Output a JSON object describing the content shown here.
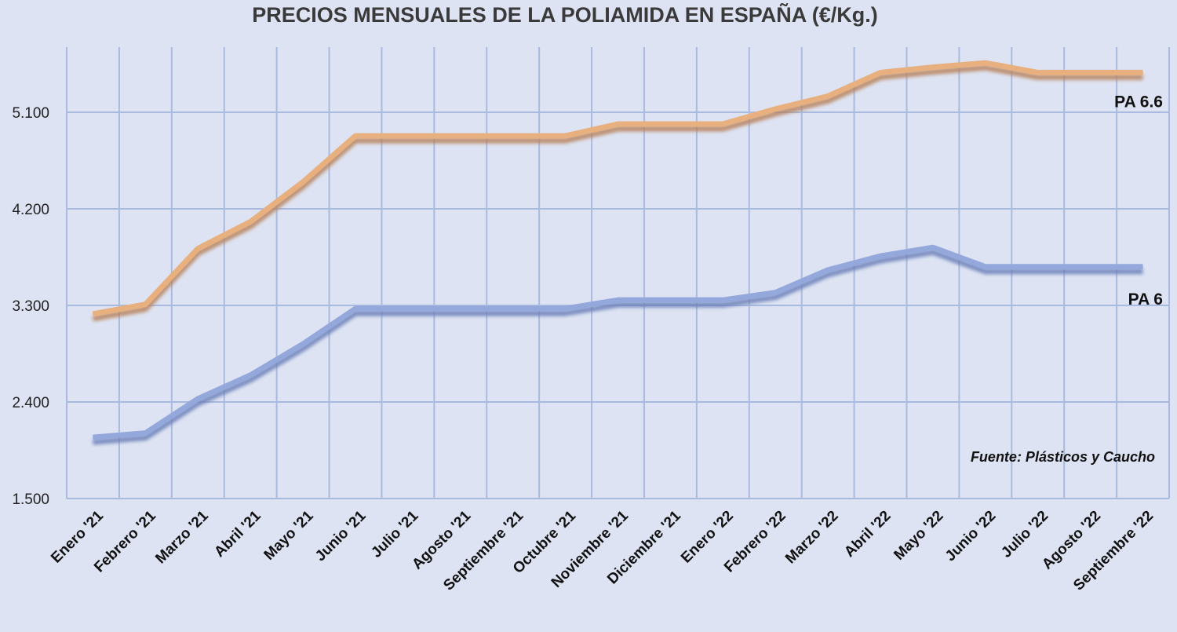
{
  "chart_data": {
    "type": "line",
    "title": "PRECIOS MENSUALES DE LA POLIAMIDA EN ESPAÑA (€/Kg.)",
    "xlabel": "",
    "ylabel": "",
    "ylim": [
      1500,
      5700
    ],
    "yticks": [
      1500,
      2400,
      3300,
      4200,
      5100
    ],
    "ytick_labels": [
      "1.500",
      "2.400",
      "3.300",
      "4.200",
      "5.100"
    ],
    "grid": true,
    "categories": [
      "Enero '21",
      "Febrero '21",
      "Marzo '21",
      "Abril '21",
      "Mayo '21",
      "Junio '21",
      "Julio '21",
      "Agosto '21",
      "Septiembre '21",
      "Octubre '21",
      "Noviembre '21",
      "Diciembre '21",
      "Enero '22",
      "Febrero '22",
      "Marzo '22",
      "Abril '22",
      "Mayo '22",
      "Junio '22",
      "Julio '22",
      "Agosto '22",
      "Septiembre '22"
    ],
    "series": [
      {
        "name": "PA 6.6",
        "color": "#e8b07f",
        "values": [
          3220,
          3310,
          3830,
          4080,
          4450,
          4880,
          4880,
          4880,
          4880,
          4880,
          4990,
          4990,
          4990,
          5130,
          5250,
          5470,
          5520,
          5560,
          5470,
          5470,
          5470
        ]
      },
      {
        "name": "PA 6",
        "color": "#94a8dc",
        "values": [
          2070,
          2110,
          2430,
          2650,
          2940,
          3270,
          3270,
          3270,
          3270,
          3270,
          3350,
          3350,
          3350,
          3420,
          3630,
          3760,
          3840,
          3660,
          3660,
          3660,
          3660
        ]
      }
    ],
    "annotation": "Fuente: Plásticos y Caucho"
  }
}
